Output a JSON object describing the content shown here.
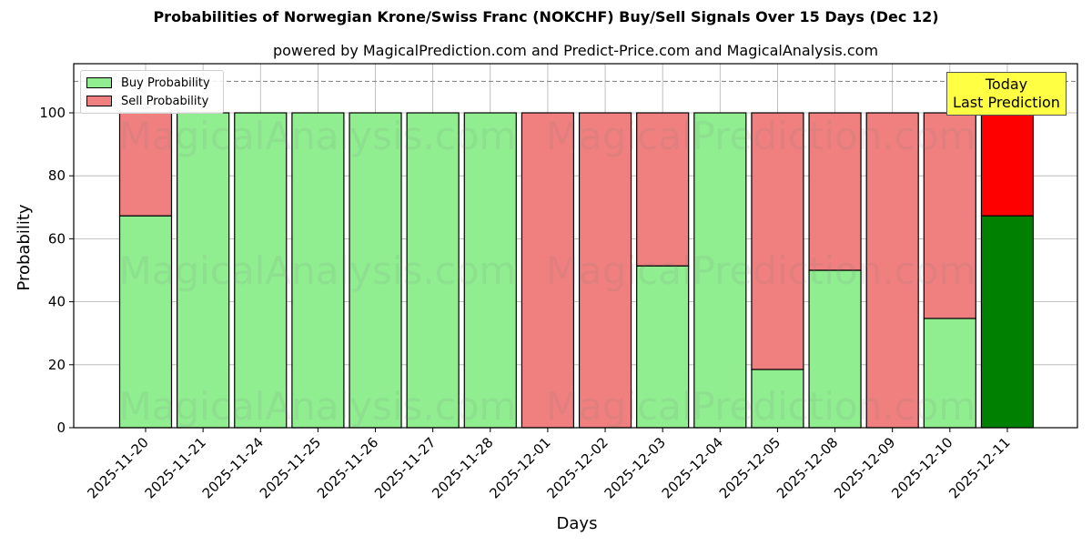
{
  "chart_data": {
    "type": "bar",
    "stacked": true,
    "title": "Probabilities of Norwegian Krone/Swiss Franc (NOKCHF) Buy/Sell Signals Over 15 Days (Dec 12)",
    "subtitle": "powered by MagicalPrediction.com and Predict-Price.com and MagicalAnalysis.com",
    "xlabel": "Days",
    "ylabel": "Probability",
    "ylim": [
      0,
      115
    ],
    "yticks": [
      0,
      20,
      40,
      60,
      80,
      100
    ],
    "grid": true,
    "reference_line": {
      "y": 110,
      "style": "dashed",
      "color": "#808080"
    },
    "legend_position": "upper left",
    "categories": [
      "2025-11-20",
      "2025-11-21",
      "2025-11-24",
      "2025-11-25",
      "2025-11-26",
      "2025-11-27",
      "2025-11-28",
      "2025-12-01",
      "2025-12-02",
      "2025-12-03",
      "2025-12-04",
      "2025-12-05",
      "2025-12-08",
      "2025-12-09",
      "2025-12-10",
      "2025-12-11"
    ],
    "series": [
      {
        "name": "Buy Probability",
        "color": "#90ee90",
        "values": [
          67.3,
          100,
          100,
          100,
          100,
          100,
          100,
          0,
          0,
          51.4,
          100,
          18.5,
          50.0,
          0,
          34.7,
          67.3
        ]
      },
      {
        "name": "Sell Probability",
        "color": "#f08080",
        "values": [
          32.7,
          0,
          0,
          0,
          0,
          0,
          0,
          100,
          100,
          48.6,
          0,
          81.5,
          50.0,
          100,
          65.3,
          32.7
        ]
      }
    ],
    "highlight": {
      "index": 15,
      "buy_color": "#008000",
      "sell_color": "#ff0000",
      "annotation": "Today\nLast Prediction",
      "annotation_bg": "#ffff44"
    },
    "watermarks": [
      "MagicalAnalysis.com",
      "MagicalPrediction.com"
    ]
  },
  "legend": {
    "buy_label": "Buy Probability",
    "sell_label": "Sell Probability"
  },
  "annotation": {
    "line1": "Today",
    "line2": "Last Prediction"
  }
}
